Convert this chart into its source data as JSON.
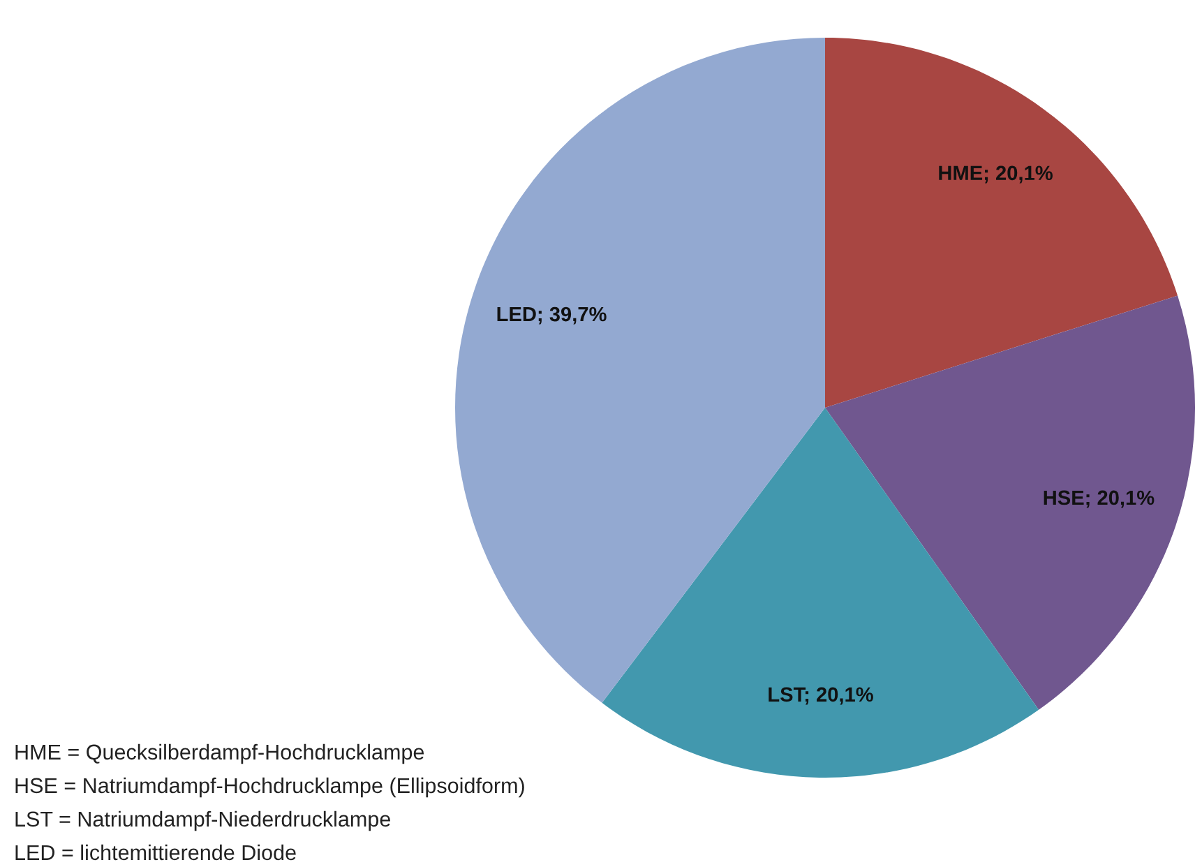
{
  "chart_data": {
    "type": "pie",
    "categories": [
      "HME",
      "HSE",
      "LST",
      "LED"
    ],
    "values": [
      20.1,
      20.1,
      20.1,
      39.7
    ],
    "colors": [
      "#a84642",
      "#70578f",
      "#4298ae",
      "#93a9d1"
    ],
    "value_labels": [
      "20,1%",
      "20,1%",
      "20,1%",
      "39,7%"
    ],
    "annotations": [
      "HME = Quecksilberdampf-Hochdrucklampe",
      "HSE = Natriumdampf-Hochdrucklampe (Ellipsoidform)",
      "LST = Natriumdampf-Niederdrucklampe",
      "LED = lichtemittierende Diode"
    ],
    "legend": false
  }
}
